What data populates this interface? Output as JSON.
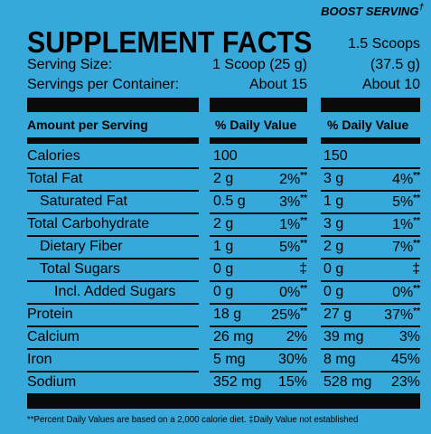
{
  "boost_label": {
    "text": "BOOST SERVING",
    "mark": "†"
  },
  "title": "SUPPLEMENT FACTS",
  "serving_size": {
    "label": "Serving Size:",
    "col_1": "1 Scoop (25 g)",
    "col_2_line_1": "1.5 Scoops",
    "col_2_line_2": "(37.5 g)"
  },
  "servings_per_container": {
    "label": "Servings per Container:",
    "col_1": "About 15",
    "col_2": "About 10"
  },
  "header": {
    "amount": "Amount per Serving",
    "dv_1": "% Daily Value",
    "dv_2": "% Daily Value"
  },
  "rows": [
    {
      "name": "Calories",
      "amount_1": "100",
      "amount_2": "150"
    },
    {
      "name": "Total Fat",
      "amount_1": "2 g",
      "dv_1": "2%",
      "mark_1": "**",
      "amount_2": "3 g",
      "dv_2": "4%",
      "mark_2": "**"
    },
    {
      "name": "Saturated Fat",
      "amount_1": "0.5 g",
      "dv_1": "3%",
      "mark_1": "**",
      "amount_2": "1 g",
      "dv_2": "5%",
      "mark_2": "**"
    },
    {
      "name": "Total Carbohydrate",
      "amount_1": "2 g",
      "dv_1": "1%",
      "mark_1": "**",
      "amount_2": "3 g",
      "dv_2": "1%",
      "mark_2": "**"
    },
    {
      "name": "Dietary Fiber",
      "amount_1": "1 g",
      "dv_1": "5%",
      "mark_1": "**",
      "amount_2": "2 g",
      "dv_2": "7%",
      "mark_2": "**"
    },
    {
      "name": "Total Sugars",
      "amount_1": "0 g",
      "dv_1": "‡",
      "amount_2": "0 g",
      "dv_2": "‡"
    },
    {
      "name": "Incl. Added Sugars",
      "amount_1": "0 g",
      "dv_1": "0%",
      "mark_1": "**",
      "amount_2": "0 g",
      "dv_2": "0%",
      "mark_2": "**"
    },
    {
      "name": "Protein",
      "amount_1": "18 g",
      "dv_1": "25%",
      "mark_1": "**",
      "amount_2": "27 g",
      "dv_2": "37%",
      "mark_2": "**"
    },
    {
      "name": "Calcium",
      "amount_1": "26 mg",
      "dv_1": "2%",
      "amount_2": "39 mg",
      "dv_2": "3%"
    },
    {
      "name": "Iron",
      "amount_1": "5 mg",
      "dv_1": "30%",
      "amount_2": "8 mg",
      "dv_2": "45%"
    },
    {
      "name": "Sodium",
      "amount_1": "352 mg",
      "dv_1": "15%",
      "amount_2": "528 mg",
      "dv_2": "23%"
    }
  ],
  "footnote": "**Percent Daily Values are based on a 2,000 calorie diet. ‡Daily Value not established"
}
